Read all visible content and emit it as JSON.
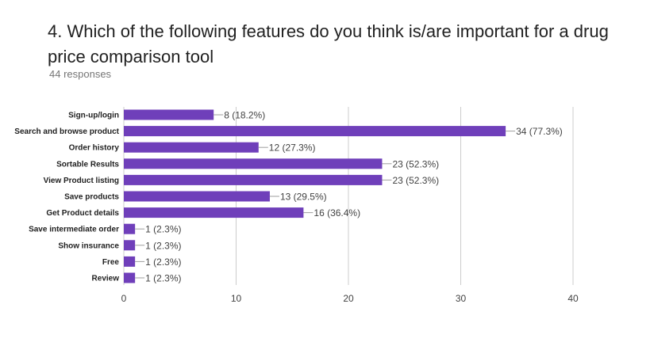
{
  "title": "4. Which of the following features do you think is/are important for a drug price comparison tool",
  "subtitle": "44 responses",
  "colors": {
    "bar": "#6f3fba",
    "gridline": "#cccccc",
    "leader": "#9e9e9e"
  },
  "chart_data": {
    "type": "bar",
    "orientation": "horizontal",
    "categories": [
      "Sign-up/login",
      "Search and browse product",
      "Order history",
      "Sortable Results",
      "View Product listing",
      "Save products",
      "Get Product details",
      "Save intermediate order",
      "Show insurance",
      "Free",
      "Review"
    ],
    "values": [
      8,
      34,
      12,
      23,
      23,
      13,
      16,
      1,
      1,
      1,
      1
    ],
    "data_labels": [
      "8 (18.2%)",
      "34 (77.3%)",
      "12 (27.3%)",
      "23 (52.3%)",
      "23 (52.3%)",
      "13 (29.5%)",
      "16 (36.4%)",
      "1 (2.3%)",
      "1 (2.3%)",
      "1 (2.3%)",
      "1 (2.3%)"
    ],
    "xlim": [
      0,
      40
    ],
    "xticks": [
      "0",
      "10",
      "20",
      "30",
      "40"
    ],
    "grid": true,
    "legend": "none"
  }
}
